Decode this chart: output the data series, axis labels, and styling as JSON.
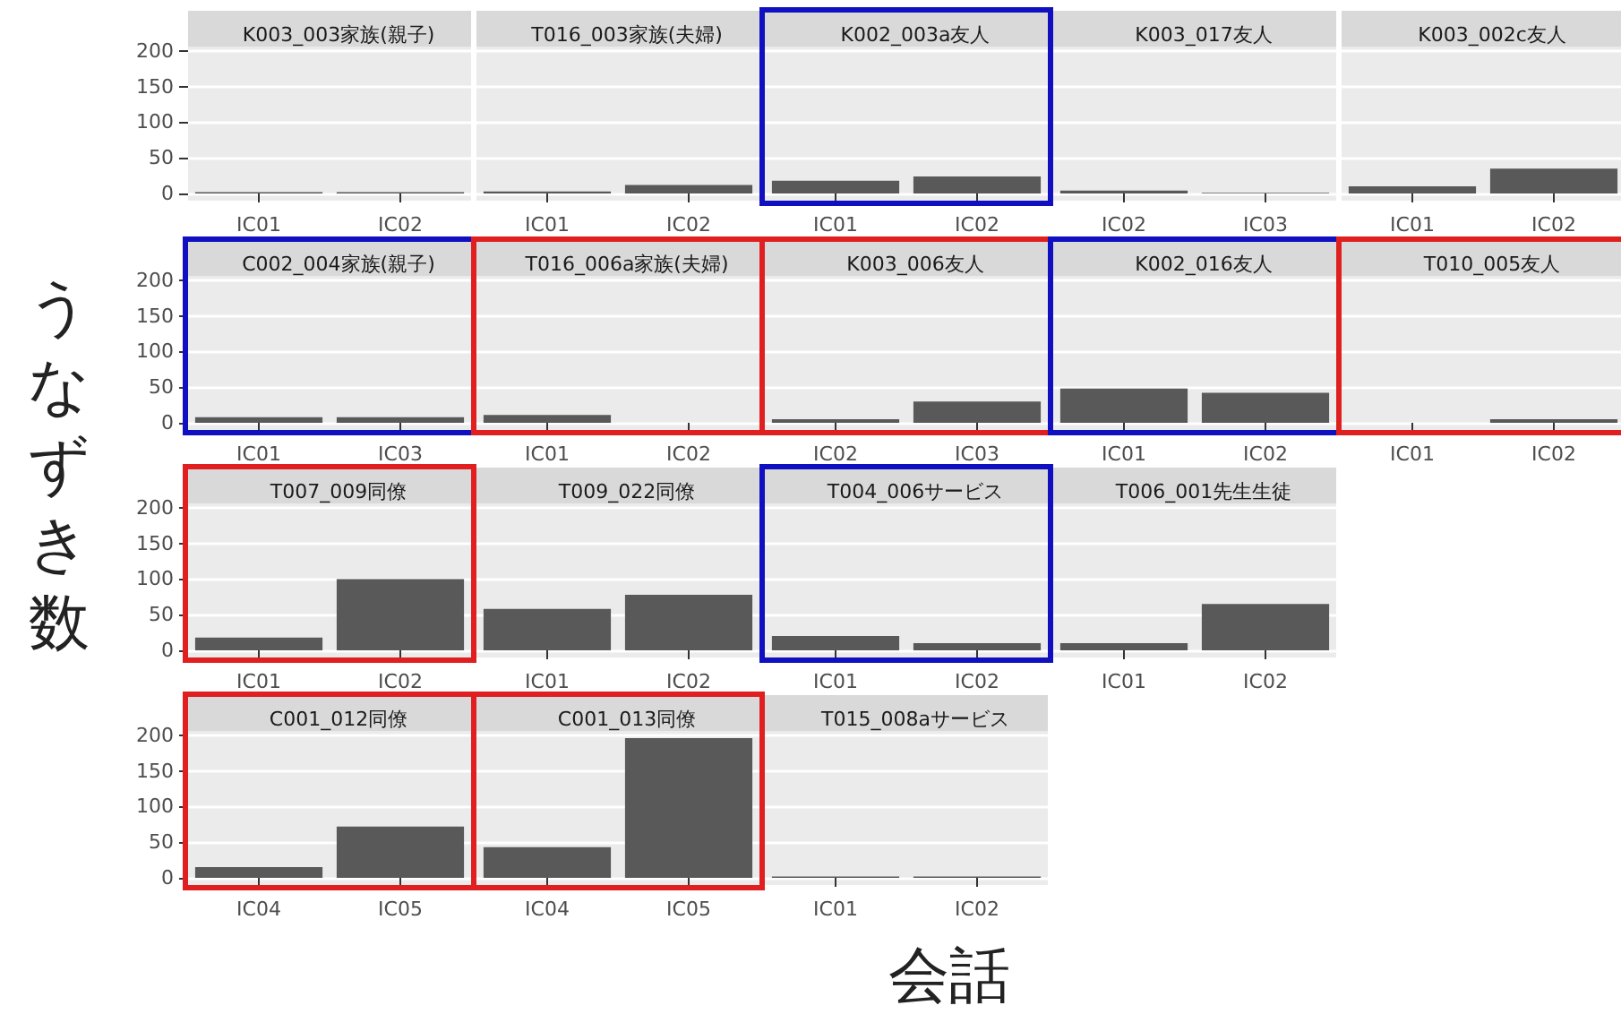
{
  "chart_data": [
    {
      "type": "bar",
      "title": "K003_003家族(親子)",
      "ylabel": "うなずき数",
      "categories": [
        "IC01",
        "IC02"
      ],
      "values": [
        2,
        2
      ],
      "color": "#595959",
      "ylim": [
        -10,
        206
      ],
      "yticks": [
        0,
        50,
        100,
        150,
        200
      ],
      "grid": "y"
    },
    {
      "type": "bar",
      "title": "T016_003家族(夫婦)",
      "categories": [
        "IC01",
        "IC02"
      ],
      "values": [
        3,
        12
      ],
      "color": "#595959",
      "ylim": [
        -10,
        206
      ],
      "yticks": [
        0,
        50,
        100,
        150,
        200
      ],
      "grid": "y",
      "tick_labels": "x"
    },
    {
      "type": "bar",
      "title": "K002_003a友人",
      "categories": [
        "IC01",
        "IC02"
      ],
      "values": [
        18,
        24
      ],
      "color": "#595959",
      "ylim": [
        -10,
        206
      ],
      "yticks": [
        0,
        50,
        100,
        150,
        200
      ],
      "grid": "y",
      "tick_labels": "x"
    },
    {
      "type": "bar",
      "title": "K003_017友人",
      "categories": [
        "IC02",
        "IC03"
      ],
      "values": [
        4,
        1
      ],
      "color": "#595959",
      "ylim": [
        -10,
        206
      ],
      "yticks": [
        0,
        50,
        100,
        150,
        200
      ],
      "grid": "y",
      "tick_labels": "x"
    },
    {
      "type": "bar",
      "title": "K003_002c友人",
      "categories": [
        "IC01",
        "IC02"
      ],
      "values": [
        10,
        35
      ],
      "color": "#595959",
      "ylim": [
        -10,
        206
      ],
      "yticks": [
        0,
        50,
        100,
        150,
        200
      ],
      "grid": "y",
      "tick_labels": "x"
    },
    {
      "type": "bar",
      "title": "C002_004家族(親子)",
      "categories": [
        "IC01",
        "IC03"
      ],
      "values": [
        8,
        8
      ],
      "color": "#595959",
      "ylim": [
        -10,
        206
      ],
      "yticks": [
        0,
        50,
        100,
        150,
        200
      ],
      "grid": "y"
    },
    {
      "type": "bar",
      "title": "T016_006a家族(夫婦)",
      "categories": [
        "IC01",
        "IC02"
      ],
      "values": [
        11,
        0
      ],
      "color": "#595959",
      "ylim": [
        -10,
        206
      ],
      "yticks": [
        0,
        50,
        100,
        150,
        200
      ],
      "grid": "y",
      "tick_labels": "x"
    },
    {
      "type": "bar",
      "title": "K003_006友人",
      "categories": [
        "IC02",
        "IC03"
      ],
      "values": [
        5,
        30
      ],
      "color": "#595959",
      "ylim": [
        -10,
        206
      ],
      "yticks": [
        0,
        50,
        100,
        150,
        200
      ],
      "grid": "y",
      "tick_labels": "x"
    },
    {
      "type": "bar",
      "title": "K002_016友人",
      "categories": [
        "IC01",
        "IC02"
      ],
      "values": [
        48,
        42
      ],
      "color": "#595959",
      "ylim": [
        -10,
        206
      ],
      "yticks": [
        0,
        50,
        100,
        150,
        200
      ],
      "grid": "y",
      "tick_labels": "x"
    },
    {
      "type": "bar",
      "title": "T010_005友人",
      "categories": [
        "IC01",
        "IC02"
      ],
      "values": [
        0,
        5
      ],
      "color": "#595959",
      "ylim": [
        -10,
        206
      ],
      "yticks": [
        0,
        50,
        100,
        150,
        200
      ],
      "grid": "y",
      "tick_labels": "x"
    },
    {
      "type": "bar",
      "title": "T007_009同僚",
      "categories": [
        "IC01",
        "IC02"
      ],
      "values": [
        18,
        100
      ],
      "color": "#595959",
      "ylim": [
        -10,
        206
      ],
      "yticks": [
        0,
        50,
        100,
        150,
        200
      ],
      "grid": "y"
    },
    {
      "type": "bar",
      "title": "T009_022同僚",
      "categories": [
        "IC01",
        "IC02"
      ],
      "values": [
        58,
        78
      ],
      "color": "#595959",
      "ylim": [
        -10,
        206
      ],
      "yticks": [
        0,
        50,
        100,
        150,
        200
      ],
      "grid": "y",
      "tick_labels": "x"
    },
    {
      "type": "bar",
      "title": "T004_006サービス",
      "categories": [
        "IC01",
        "IC02"
      ],
      "values": [
        20,
        10
      ],
      "color": "#595959",
      "ylim": [
        -10,
        206
      ],
      "yticks": [
        0,
        50,
        100,
        150,
        200
      ],
      "grid": "y",
      "tick_labels": "x"
    },
    {
      "type": "bar",
      "title": "T006_001先生生徒",
      "categories": [
        "IC01",
        "IC02"
      ],
      "values": [
        10,
        65
      ],
      "color": "#595959",
      "ylim": [
        -10,
        206
      ],
      "yticks": [
        0,
        50,
        100,
        150,
        200
      ],
      "grid": "y",
      "tick_labels": "x"
    },
    {
      "type": "bar",
      "title": "C001_012同僚",
      "categories": [
        "IC04",
        "IC05"
      ],
      "values": [
        15,
        72
      ],
      "color": "#595959",
      "ylim": [
        -10,
        206
      ],
      "yticks": [
        0,
        50,
        100,
        150,
        200
      ],
      "grid": "y"
    },
    {
      "type": "bar",
      "title": "C001_013同僚",
      "categories": [
        "IC04",
        "IC05"
      ],
      "values": [
        43,
        196
      ],
      "color": "#595959",
      "ylim": [
        -10,
        206
      ],
      "yticks": [
        0,
        50,
        100,
        150,
        200
      ],
      "grid": "y",
      "tick_labels": "x"
    },
    {
      "type": "bar",
      "title": "T015_008aサービス",
      "xlabel": "会話",
      "categories": [
        "IC01",
        "IC02"
      ],
      "values": [
        2,
        2
      ],
      "color": "#595959",
      "ylim": [
        -10,
        206
      ],
      "yticks": [
        0,
        50,
        100,
        150,
        200
      ],
      "grid": "y",
      "tick_labels": "x"
    }
  ]
}
